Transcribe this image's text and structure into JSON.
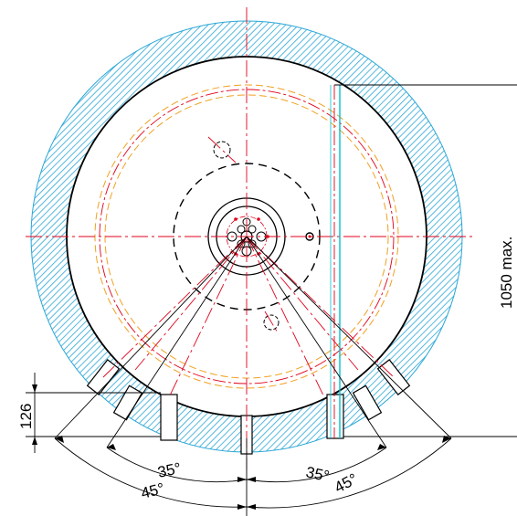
{
  "drawing": {
    "dimensions": {
      "diameter_max": "1050 max.",
      "height": "126",
      "angle_inner_left": "35°",
      "angle_inner_right": "35°",
      "angle_outer_left": "45°",
      "angle_outer_right": "45°"
    },
    "colors": {
      "line": "#000000",
      "hatch_fill": "#2aa6d6",
      "centerline": "#e0001a",
      "bolt_circle": "#f0a020",
      "cyan_line": "#00c0d0"
    }
  }
}
